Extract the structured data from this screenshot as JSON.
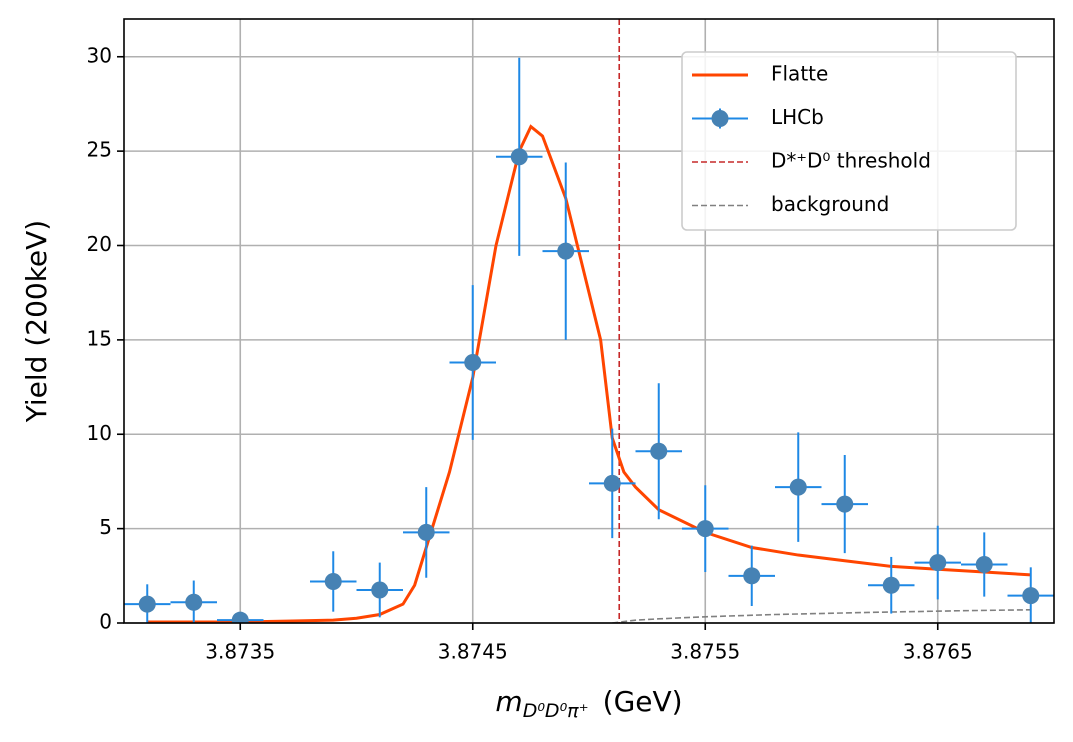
{
  "chart_data": {
    "type": "errorbar-fit",
    "xlabel": {
      "main": "m",
      "sub": "D⁰D⁰π⁺",
      "unit": "(GeV)"
    },
    "ylabel": "Yield (200keV)",
    "xlim": [
      3.873,
      3.877
    ],
    "ylim": [
      0,
      32
    ],
    "xticks": [
      3.8735,
      3.8745,
      3.8755,
      3.8765
    ],
    "yticks": [
      0,
      5,
      10,
      15,
      20,
      25,
      30
    ],
    "grid": true,
    "legend": "upper right",
    "series": [
      {
        "name": "Flatte",
        "kind": "line",
        "color": "#ff4500",
        "dash": false,
        "x": [
          3.8731,
          3.8735,
          3.8737,
          3.8739,
          3.874,
          3.8741,
          3.8742,
          3.87425,
          3.8743,
          3.8744,
          3.8745,
          3.8746,
          3.8747,
          3.87475,
          3.8748,
          3.8749,
          3.875,
          3.87505,
          3.8751,
          3.87515,
          3.8752,
          3.8753,
          3.8755,
          3.8757,
          3.8759,
          3.8761,
          3.8763,
          3.8765,
          3.8767,
          3.8769
        ],
        "values": [
          0.05,
          0.05,
          0.1,
          0.15,
          0.25,
          0.45,
          1.0,
          2.0,
          4.0,
          8,
          13,
          20,
          25,
          26.3,
          25.8,
          22.5,
          17.5,
          15,
          9.8,
          8,
          7.2,
          6.0,
          4.8,
          4.0,
          3.6,
          3.3,
          3.0,
          2.85,
          2.7,
          2.55
        ]
      },
      {
        "name": "LHCb",
        "kind": "errorbar",
        "color": "#4682b4",
        "ecolor": "#1e88e5",
        "xerr": 0.0001,
        "x": [
          3.8731,
          3.8733,
          3.8735,
          3.8739,
          3.8741,
          3.8743,
          3.8745,
          3.8747,
          3.8749,
          3.8751,
          3.8753,
          3.8755,
          3.8757,
          3.8759,
          3.8761,
          3.8763,
          3.8765,
          3.8767,
          3.8769
        ],
        "values": [
          1.0,
          1.1,
          0.15,
          2.2,
          1.75,
          4.8,
          13.8,
          24.7,
          19.7,
          7.4,
          9.1,
          5.0,
          2.5,
          7.2,
          6.3,
          2.0,
          3.2,
          3.1,
          1.45
        ],
        "yerr": [
          1.05,
          1.15,
          0.2,
          1.6,
          1.45,
          2.4,
          4.1,
          5.25,
          4.7,
          2.9,
          3.6,
          2.3,
          1.6,
          2.9,
          2.6,
          1.5,
          1.95,
          1.7,
          1.5
        ]
      },
      {
        "name": "D*⁺D⁰ threshold",
        "kind": "vline",
        "color": "#c62828",
        "dash": true,
        "x": 3.87513
      },
      {
        "name": "background",
        "kind": "line",
        "color": "#808080",
        "dash": true,
        "x": [
          3.8751,
          3.8752,
          3.8753,
          3.8755,
          3.8758,
          3.8762,
          3.8766,
          3.8769
        ],
        "values": [
          0,
          0.15,
          0.22,
          0.33,
          0.45,
          0.56,
          0.65,
          0.7
        ]
      }
    ]
  }
}
